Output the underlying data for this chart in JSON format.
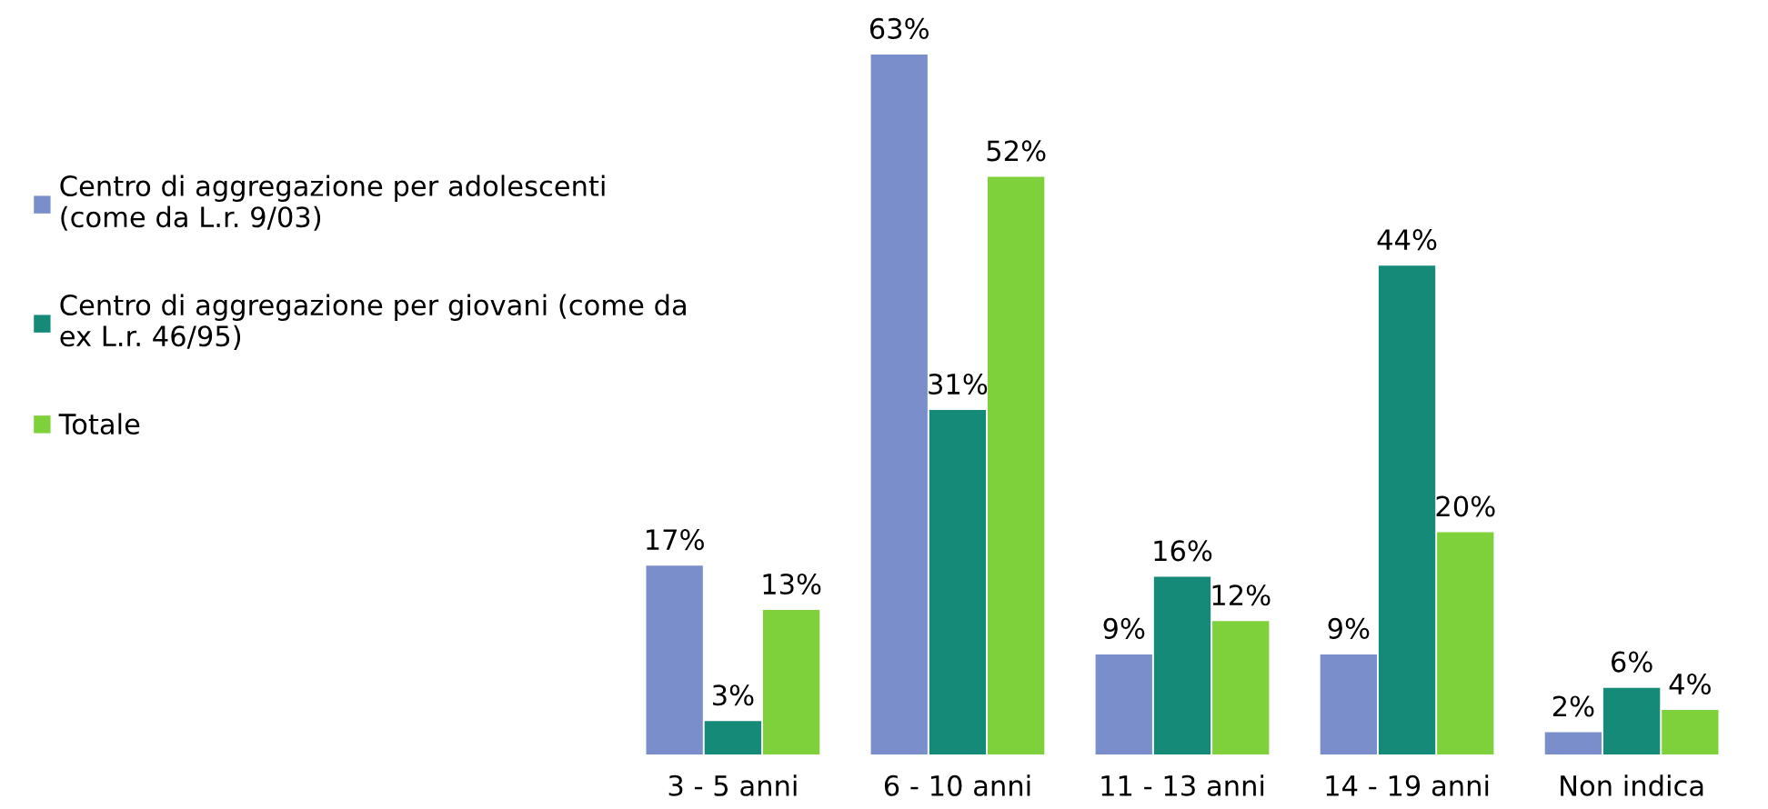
{
  "chart_data": {
    "type": "bar",
    "categories": [
      "3 - 5 anni",
      "6 - 10 anni",
      "11 - 13 anni",
      "14 - 19 anni",
      "Non indica"
    ],
    "series": [
      {
        "name": "Centro di aggregazione per adolescenti\n(come da L.r. 9/03)",
        "color": "#7a8ecc",
        "values": [
          17,
          63,
          9,
          9,
          2
        ],
        "value_labels": [
          "17%",
          "63%",
          "9%",
          "9%",
          "2%"
        ]
      },
      {
        "name": "Centro di aggregazione per giovani (come da\nex L.r. 46/95)",
        "color": "#168a78",
        "values": [
          3,
          31,
          16,
          44,
          6
        ],
        "value_labels": [
          "3%",
          "31%",
          "16%",
          "44%",
          "6%"
        ]
      },
      {
        "name": "Totale",
        "color": "#7fd13b",
        "values": [
          13,
          52,
          12,
          20,
          4
        ],
        "value_labels": [
          "13%",
          "52%",
          "12%",
          "20%",
          "4%"
        ]
      }
    ],
    "legend": "left",
    "grid": false
  }
}
